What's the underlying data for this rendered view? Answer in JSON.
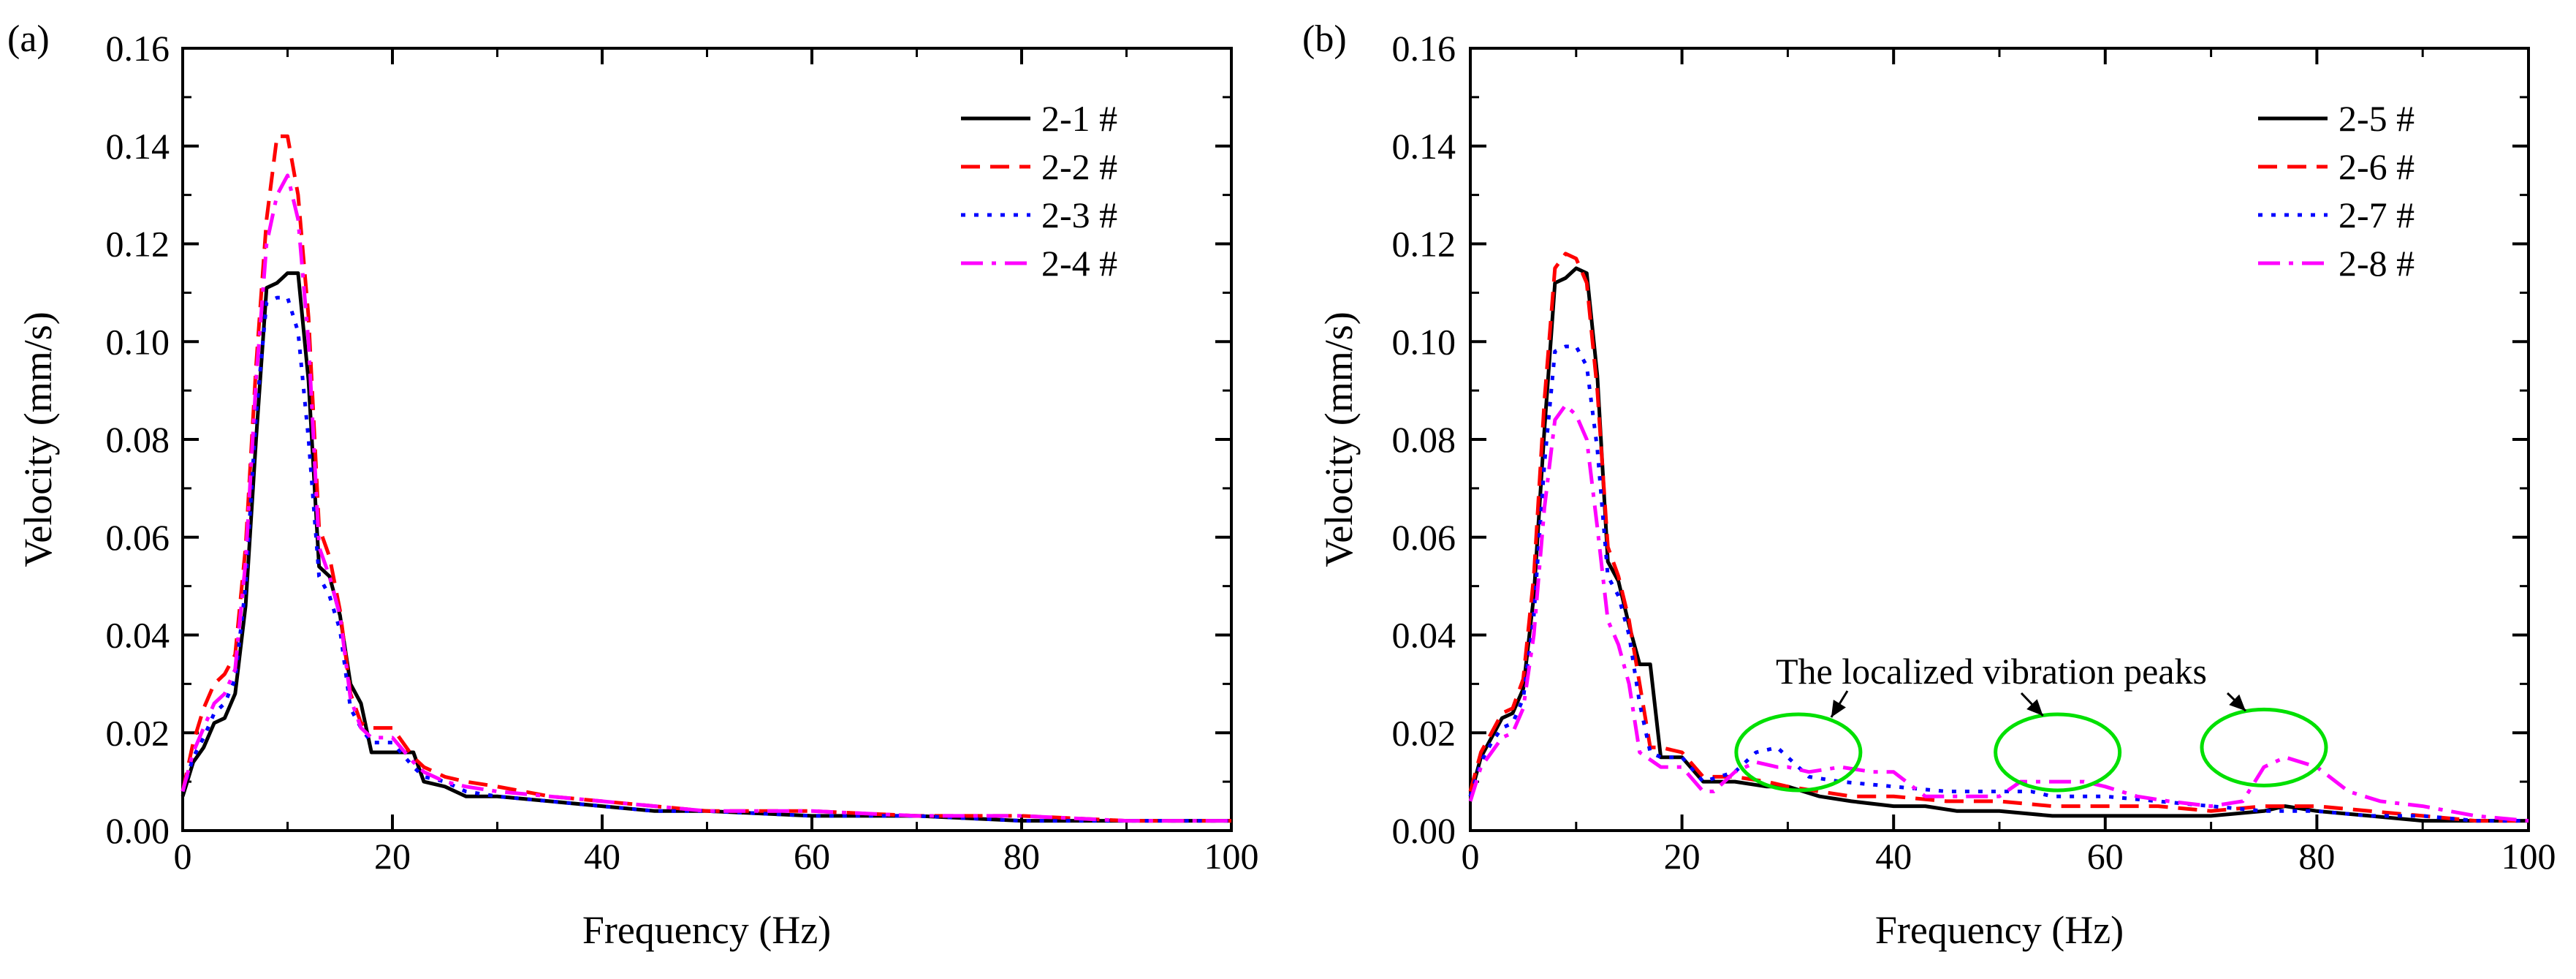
{
  "chart_data": [
    {
      "type": "line",
      "panel_label": "(a)",
      "xlabel": "Frequency (Hz)",
      "ylabel": "Velocity (mm/s)",
      "xlim": [
        0,
        100
      ],
      "ylim": [
        0,
        0.16
      ],
      "xticks": [
        0,
        20,
        40,
        60,
        80,
        100
      ],
      "yticks": [
        0.0,
        0.02,
        0.04,
        0.06,
        0.08,
        0.1,
        0.12,
        0.14,
        0.16
      ],
      "xtick_labels": [
        "0",
        "20",
        "40",
        "60",
        "80",
        "100"
      ],
      "ytick_labels": [
        "0.00",
        "0.02",
        "0.04",
        "0.06",
        "0.08",
        "0.10",
        "0.12",
        "0.14",
        "0.16"
      ],
      "legend_position": "top-right",
      "series": [
        {
          "name": "2-1 #",
          "color": "#000000",
          "style": "solid",
          "x": [
            0,
            1,
            2,
            3,
            4,
            5,
            6,
            7,
            8,
            9,
            10,
            11,
            12,
            13,
            14,
            15,
            16,
            17,
            18,
            19,
            20,
            22,
            23,
            25,
            27,
            30,
            35,
            40,
            45,
            50,
            60,
            70,
            80,
            90,
            100
          ],
          "y": [
            0.007,
            0.014,
            0.017,
            0.022,
            0.023,
            0.028,
            0.046,
            0.08,
            0.111,
            0.112,
            0.114,
            0.114,
            0.092,
            0.054,
            0.052,
            0.044,
            0.03,
            0.026,
            0.016,
            0.016,
            0.016,
            0.016,
            0.01,
            0.009,
            0.007,
            0.007,
            0.006,
            0.005,
            0.004,
            0.004,
            0.003,
            0.003,
            0.002,
            0.002,
            0.002
          ]
        },
        {
          "name": "2-2 #",
          "color": "#ff0000",
          "style": "dashed",
          "x": [
            0,
            1,
            2,
            3,
            4,
            5,
            6,
            7,
            8,
            9,
            10,
            11,
            12,
            13,
            14,
            15,
            16,
            17,
            18,
            20,
            22,
            23,
            25,
            27,
            30,
            35,
            40,
            45,
            50,
            60,
            70,
            80,
            90,
            100
          ],
          "y": [
            0.008,
            0.018,
            0.025,
            0.03,
            0.032,
            0.036,
            0.058,
            0.095,
            0.125,
            0.142,
            0.142,
            0.13,
            0.105,
            0.062,
            0.056,
            0.045,
            0.028,
            0.022,
            0.021,
            0.021,
            0.015,
            0.013,
            0.011,
            0.01,
            0.009,
            0.007,
            0.006,
            0.005,
            0.004,
            0.004,
            0.003,
            0.003,
            0.002,
            0.002
          ]
        },
        {
          "name": "2-3 #",
          "color": "#0000ff",
          "style": "dotted",
          "x": [
            0,
            1,
            2,
            3,
            4,
            5,
            6,
            7,
            8,
            9,
            10,
            11,
            12,
            13,
            14,
            15,
            16,
            17,
            18,
            20,
            22,
            23,
            25,
            27,
            30,
            35,
            40,
            45,
            50,
            60,
            70,
            80,
            90,
            100
          ],
          "y": [
            0.008,
            0.015,
            0.019,
            0.024,
            0.026,
            0.031,
            0.05,
            0.085,
            0.108,
            0.109,
            0.109,
            0.102,
            0.08,
            0.052,
            0.048,
            0.041,
            0.025,
            0.021,
            0.018,
            0.018,
            0.013,
            0.011,
            0.01,
            0.008,
            0.007,
            0.006,
            0.005,
            0.004,
            0.004,
            0.003,
            0.003,
            0.002,
            0.002,
            0.002
          ]
        },
        {
          "name": "2-4 #",
          "color": "#ff00ff",
          "style": "dashdot",
          "x": [
            0,
            1,
            2,
            3,
            4,
            5,
            6,
            7,
            8,
            9,
            10,
            11,
            12,
            13,
            14,
            15,
            16,
            17,
            18,
            20,
            22,
            23,
            25,
            27,
            30,
            35,
            40,
            45,
            50,
            60,
            70,
            80,
            90,
            100
          ],
          "y": [
            0.008,
            0.016,
            0.021,
            0.026,
            0.028,
            0.033,
            0.055,
            0.092,
            0.12,
            0.13,
            0.134,
            0.125,
            0.1,
            0.058,
            0.052,
            0.044,
            0.027,
            0.021,
            0.019,
            0.019,
            0.014,
            0.012,
            0.01,
            0.009,
            0.008,
            0.007,
            0.006,
            0.005,
            0.004,
            0.004,
            0.003,
            0.003,
            0.002,
            0.002
          ]
        }
      ]
    },
    {
      "type": "line",
      "panel_label": "(b)",
      "xlabel": "Frequency (Hz)",
      "ylabel": "Velocity (mm/s)",
      "xlim": [
        0,
        100
      ],
      "ylim": [
        0,
        0.16
      ],
      "xticks": [
        0,
        20,
        40,
        60,
        80,
        100
      ],
      "yticks": [
        0.0,
        0.02,
        0.04,
        0.06,
        0.08,
        0.1,
        0.12,
        0.14,
        0.16
      ],
      "xtick_labels": [
        "0",
        "20",
        "40",
        "60",
        "80",
        "100"
      ],
      "ytick_labels": [
        "0.00",
        "0.02",
        "0.04",
        "0.06",
        "0.08",
        "0.10",
        "0.12",
        "0.14",
        "0.16"
      ],
      "legend_position": "top-right",
      "annotation": {
        "text": "The localized vibration peaks",
        "highlights": [
          {
            "x": 31,
            "y": 0.016
          },
          {
            "x": 55.5,
            "y": 0.016
          },
          {
            "x": 75,
            "y": 0.017
          }
        ],
        "text_anchor": {
          "x": 54,
          "y": 0.039
        }
      },
      "series": [
        {
          "name": "2-5 #",
          "color": "#000000",
          "style": "solid",
          "x": [
            0,
            1,
            2,
            3,
            4,
            5,
            6,
            7,
            8,
            9,
            10,
            11,
            12,
            13,
            14,
            15,
            16,
            17,
            18,
            20,
            22,
            25,
            28,
            30,
            33,
            36,
            40,
            43,
            46,
            50,
            55,
            60,
            65,
            70,
            75,
            77,
            80,
            85,
            90,
            95,
            100
          ],
          "y": [
            0.007,
            0.015,
            0.019,
            0.023,
            0.024,
            0.029,
            0.048,
            0.082,
            0.112,
            0.113,
            0.115,
            0.114,
            0.093,
            0.055,
            0.051,
            0.042,
            0.034,
            0.034,
            0.015,
            0.015,
            0.01,
            0.01,
            0.009,
            0.009,
            0.007,
            0.006,
            0.005,
            0.005,
            0.004,
            0.004,
            0.003,
            0.003,
            0.003,
            0.003,
            0.004,
            0.005,
            0.004,
            0.003,
            0.002,
            0.002,
            0.002
          ]
        },
        {
          "name": "2-6 #",
          "color": "#ff0000",
          "style": "dashed",
          "x": [
            0,
            1,
            2,
            3,
            4,
            5,
            6,
            7,
            8,
            9,
            10,
            11,
            12,
            13,
            14,
            15,
            16,
            17,
            18,
            20,
            22,
            25,
            28,
            30,
            33,
            36,
            40,
            45,
            50,
            55,
            60,
            65,
            70,
            75,
            80,
            85,
            90,
            95,
            100
          ],
          "y": [
            0.008,
            0.016,
            0.02,
            0.024,
            0.025,
            0.031,
            0.052,
            0.088,
            0.115,
            0.118,
            0.117,
            0.112,
            0.09,
            0.058,
            0.052,
            0.043,
            0.03,
            0.017,
            0.017,
            0.016,
            0.011,
            0.011,
            0.01,
            0.009,
            0.008,
            0.007,
            0.007,
            0.006,
            0.006,
            0.005,
            0.005,
            0.005,
            0.004,
            0.005,
            0.005,
            0.004,
            0.003,
            0.002,
            0.002
          ]
        },
        {
          "name": "2-7 #",
          "color": "#0000ff",
          "style": "dotted",
          "x": [
            0,
            1,
            2,
            3,
            4,
            5,
            6,
            7,
            8,
            9,
            10,
            11,
            12,
            13,
            14,
            15,
            16,
            17,
            18,
            20,
            22,
            25,
            27,
            29,
            30,
            32,
            35,
            40,
            45,
            50,
            53,
            55,
            57,
            60,
            65,
            70,
            75,
            80,
            85,
            90,
            95,
            100
          ],
          "y": [
            0.007,
            0.014,
            0.018,
            0.021,
            0.022,
            0.027,
            0.044,
            0.075,
            0.098,
            0.099,
            0.099,
            0.095,
            0.078,
            0.052,
            0.048,
            0.04,
            0.026,
            0.016,
            0.015,
            0.015,
            0.01,
            0.012,
            0.016,
            0.017,
            0.015,
            0.011,
            0.01,
            0.009,
            0.008,
            0.008,
            0.008,
            0.007,
            0.007,
            0.007,
            0.006,
            0.005,
            0.004,
            0.004,
            0.003,
            0.003,
            0.002,
            0.002
          ]
        },
        {
          "name": "2-8 #",
          "color": "#ff00ff",
          "style": "dashdot",
          "x": [
            0,
            1,
            2,
            3,
            4,
            5,
            6,
            7,
            8,
            9,
            10,
            11,
            12,
            13,
            14,
            15,
            16,
            18,
            20,
            22,
            23,
            25,
            27,
            29,
            30,
            32,
            35,
            38,
            40,
            43,
            46,
            50,
            52,
            55,
            58,
            60,
            63,
            66,
            70,
            73,
            75,
            77,
            80,
            83,
            86,
            90,
            95,
            100
          ],
          "y": [
            0.006,
            0.013,
            0.016,
            0.019,
            0.02,
            0.025,
            0.04,
            0.066,
            0.084,
            0.087,
            0.085,
            0.08,
            0.062,
            0.043,
            0.038,
            0.03,
            0.016,
            0.013,
            0.013,
            0.008,
            0.008,
            0.012,
            0.014,
            0.013,
            0.013,
            0.012,
            0.013,
            0.012,
            0.012,
            0.007,
            0.007,
            0.007,
            0.01,
            0.01,
            0.01,
            0.009,
            0.007,
            0.006,
            0.005,
            0.006,
            0.013,
            0.015,
            0.013,
            0.008,
            0.006,
            0.005,
            0.003,
            0.002
          ]
        }
      ]
    }
  ]
}
